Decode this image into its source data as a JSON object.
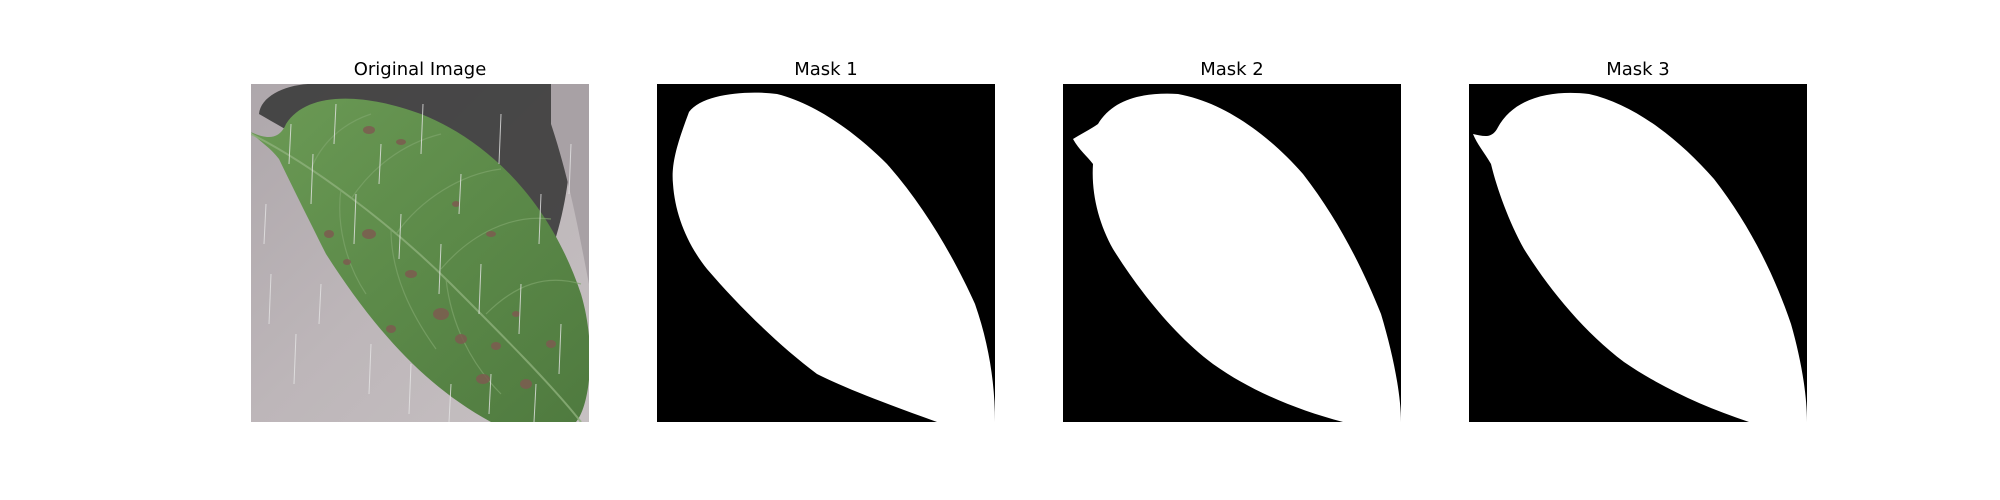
{
  "panels": [
    {
      "title": "Original Image"
    },
    {
      "title": "Mask 1"
    },
    {
      "title": "Mask 2"
    },
    {
      "title": "Mask 3"
    }
  ],
  "colors": {
    "background": "#ffffff",
    "mask_foreground": "#ffffff",
    "mask_background": "#000000",
    "leaf_green": "#5e8a4a",
    "leaf_dark_green": "#476f3b",
    "backdrop_gray": "#b9b2b5",
    "shadow": "#3a3a3a",
    "lesion_brown": "#7a5a4e"
  },
  "icons": {
    "original": "leaf-photo",
    "masks": "leaf-segmentation-mask"
  }
}
